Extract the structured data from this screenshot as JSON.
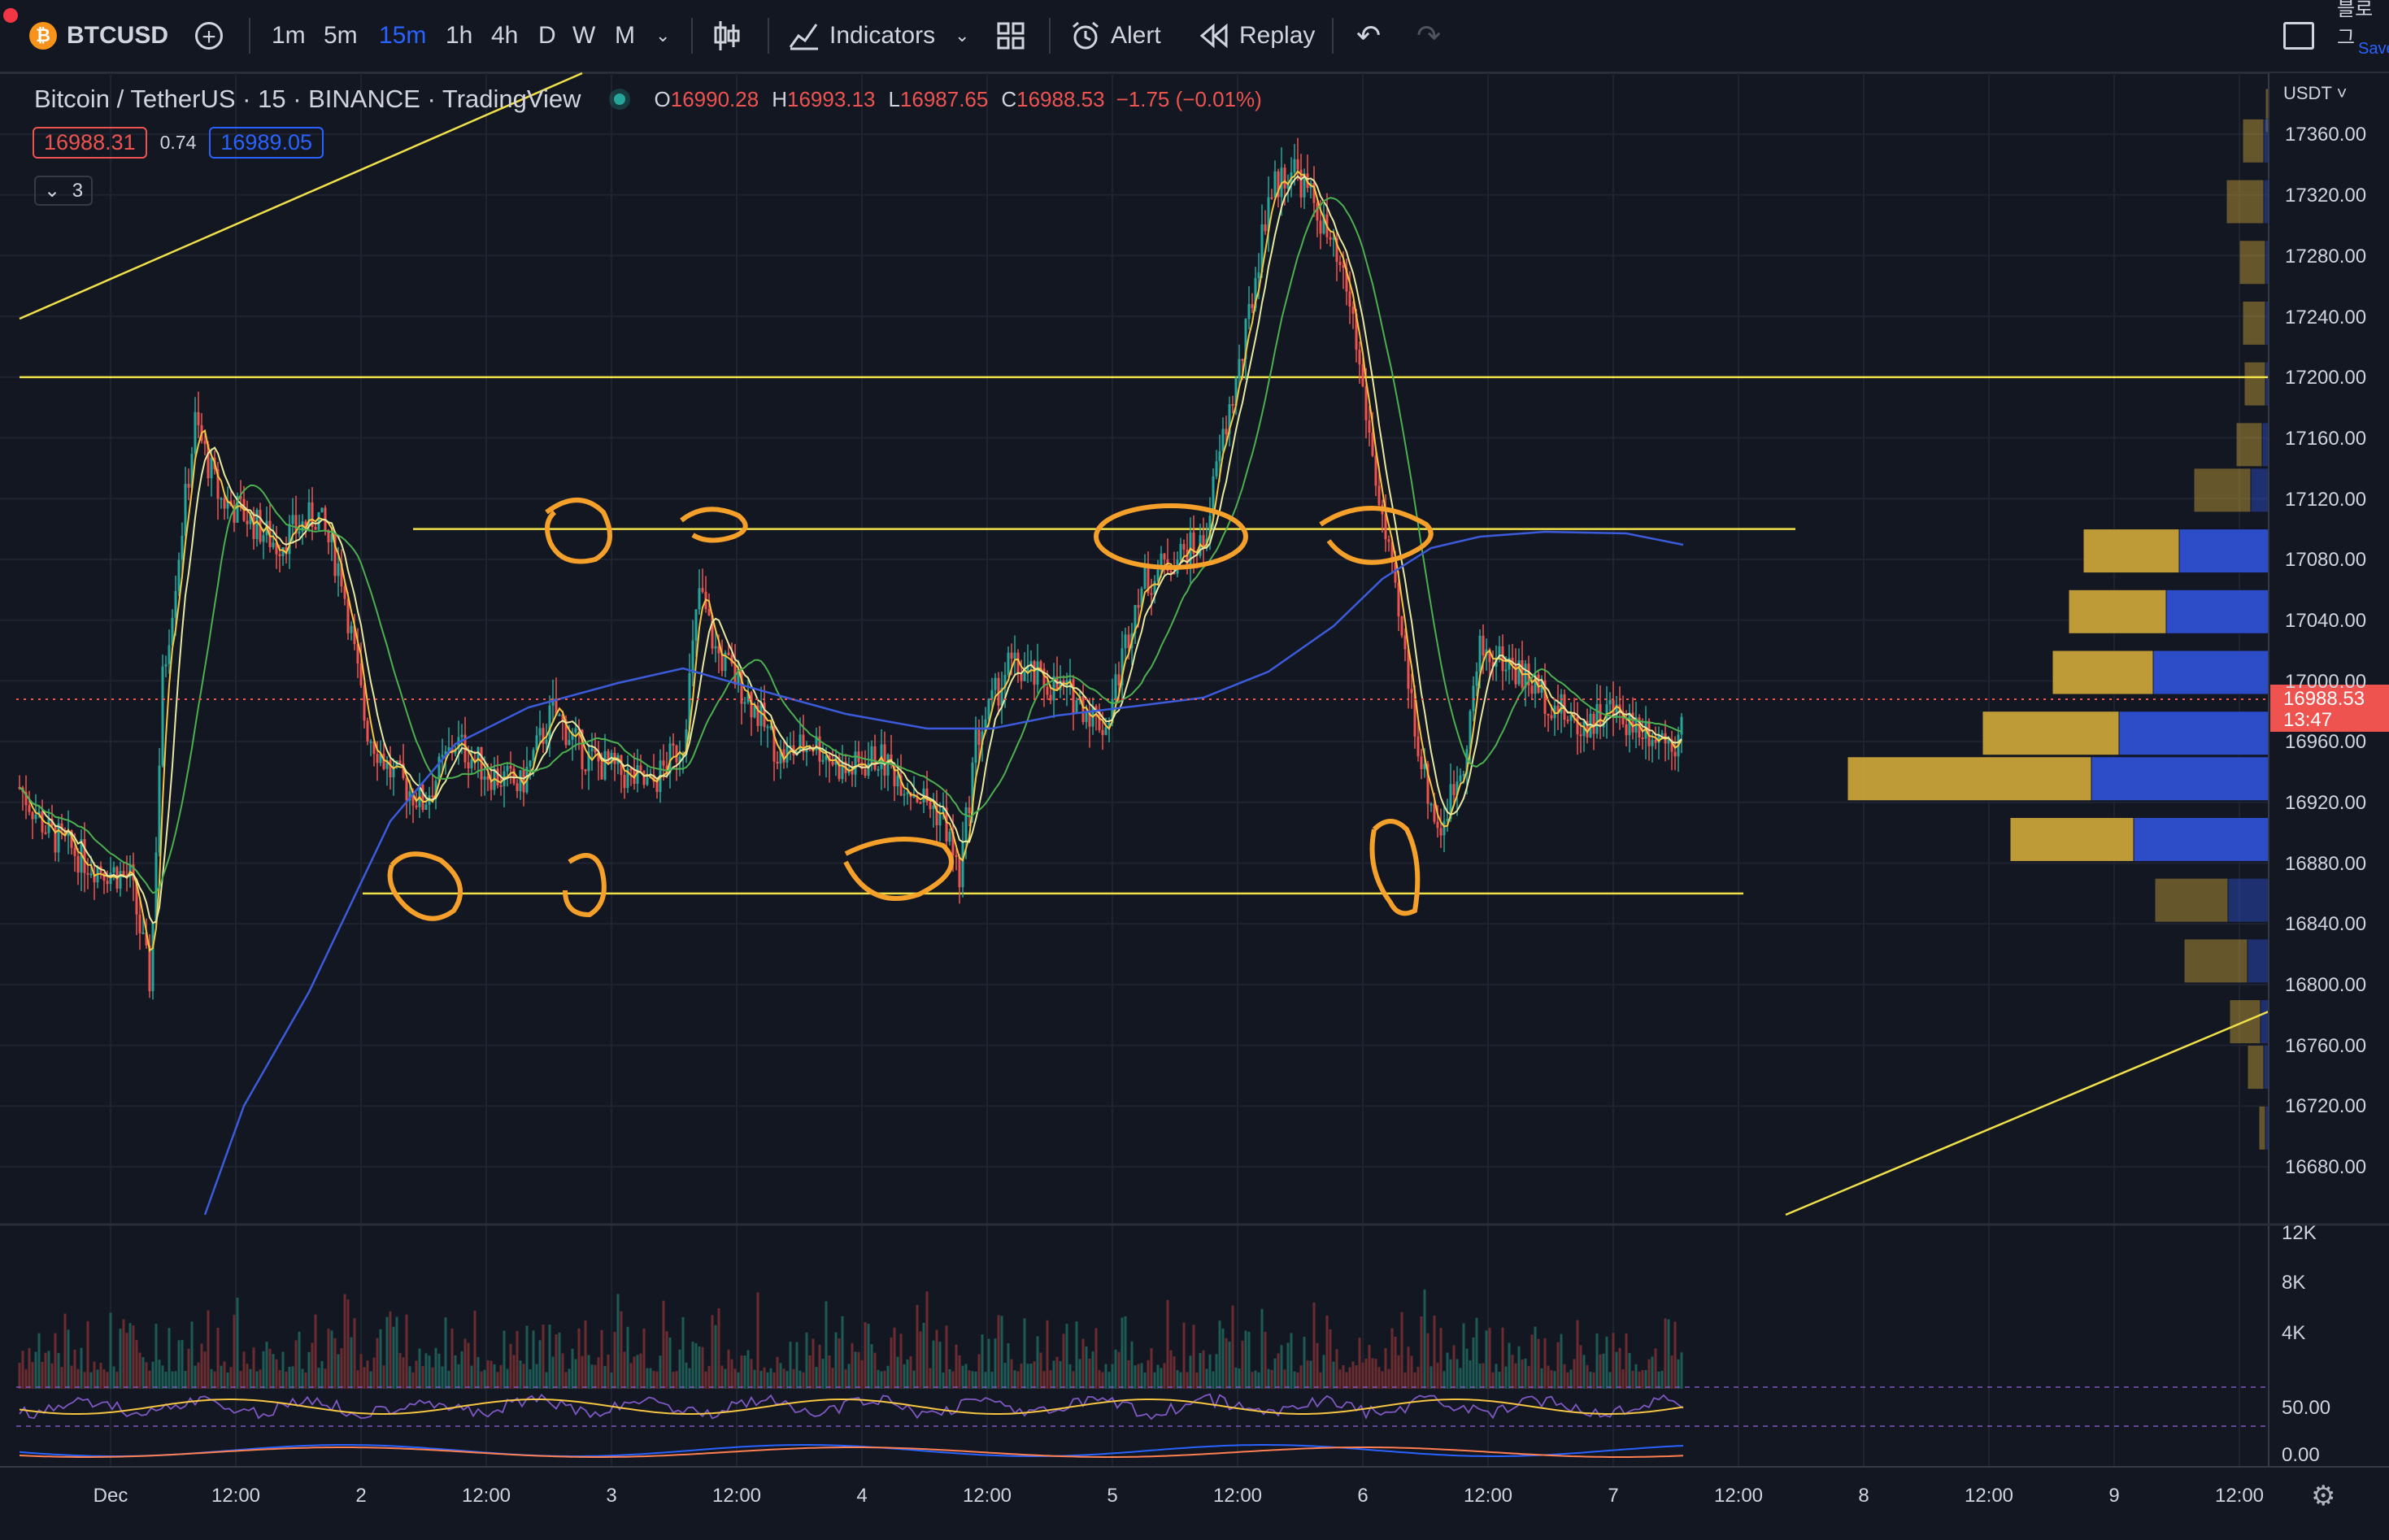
{
  "toolbar": {
    "symbol": "BTCUSD",
    "intervals": [
      "1m",
      "5m",
      "15m",
      "1h",
      "4h",
      "D",
      "W",
      "M"
    ],
    "active_interval": "15m",
    "indicators_label": "Indicators",
    "alert_label": "Alert",
    "replay_label": "Replay",
    "right_text_1": "블로그",
    "right_text_2": "Save"
  },
  "legend": {
    "title": "Bitcoin / TetherUS · 15 · BINANCE · TradingView",
    "o_label": "O",
    "o_value": "16990.28",
    "h_label": "H",
    "h_value": "16993.13",
    "l_label": "L",
    "l_value": "16987.65",
    "c_label": "C",
    "c_value": "16988.53",
    "change": "−1.75 (−0.01%)",
    "bid": "16988.31",
    "spread": "0.74",
    "ask": "16989.05",
    "collapse_count": "3"
  },
  "price_axis": {
    "currency": "USDT",
    "labels": [
      "17360.00",
      "17320.00",
      "17280.00",
      "17240.00",
      "17200.00",
      "17160.00",
      "17120.00",
      "17080.00",
      "17040.00",
      "17000.00",
      "16960.00",
      "16920.00",
      "16880.00",
      "16840.00",
      "16800.00",
      "16760.00",
      "16720.00",
      "16680.00"
    ],
    "current_price": "16988.53",
    "countdown": "13:47"
  },
  "volume_axis": [
    "12K",
    "8K",
    "4K"
  ],
  "osc_axis": [
    "50.00",
    "0.00"
  ],
  "time_axis": [
    "Dec",
    "12:00",
    "2",
    "12:00",
    "3",
    "12:00",
    "4",
    "12:00",
    "5",
    "12:00",
    "6",
    "12:00",
    "7",
    "12:00",
    "8",
    "12:00",
    "9",
    "12:00"
  ],
  "colors": {
    "background": "#131722",
    "up": "#26a69a",
    "down": "#ef5350",
    "accent": "#2962ff",
    "annotation": "#f5a02a",
    "level_line": "#f0e04a",
    "vp_up": "#c9a33a",
    "vp_down": "#2f4fd1"
  },
  "chart_data": {
    "type": "candlestick",
    "price_range": [
      16650,
      17400
    ],
    "horizontal_levels": [
      17200,
      17100,
      16860
    ],
    "current_price": 16988.53
  }
}
